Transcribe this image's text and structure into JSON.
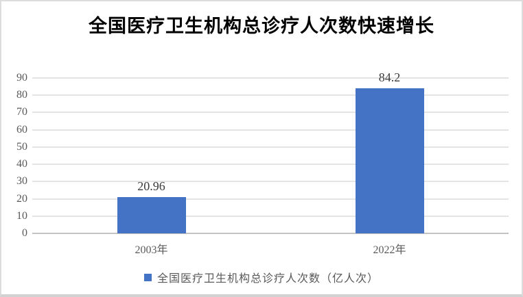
{
  "chart_data": {
    "type": "bar",
    "title": "全国医疗卫生机构总诊疗人次数快速增长",
    "categories": [
      "2003年",
      "2022年"
    ],
    "series": [
      {
        "name": "全国医疗卫生机构总诊疗人次数（亿人次）",
        "values": [
          20.96,
          84.2
        ]
      }
    ],
    "data_labels": [
      "20.96",
      "84.2"
    ],
    "xlabel": "",
    "ylabel": "",
    "ylim": [
      0,
      90
    ],
    "yticks": [
      0,
      10,
      20,
      30,
      40,
      50,
      60,
      70,
      80,
      90
    ],
    "grid": true,
    "legend_position": "bottom"
  },
  "colors": {
    "bar": "#4472c4",
    "gridline": "#e4e4e4",
    "axis_line": "#c3c3c3",
    "tick_label": "#595959",
    "data_label": "#3b3b3b",
    "title": "#000000",
    "legend_text": "#595959",
    "frame_border": "#dcdcdc"
  }
}
